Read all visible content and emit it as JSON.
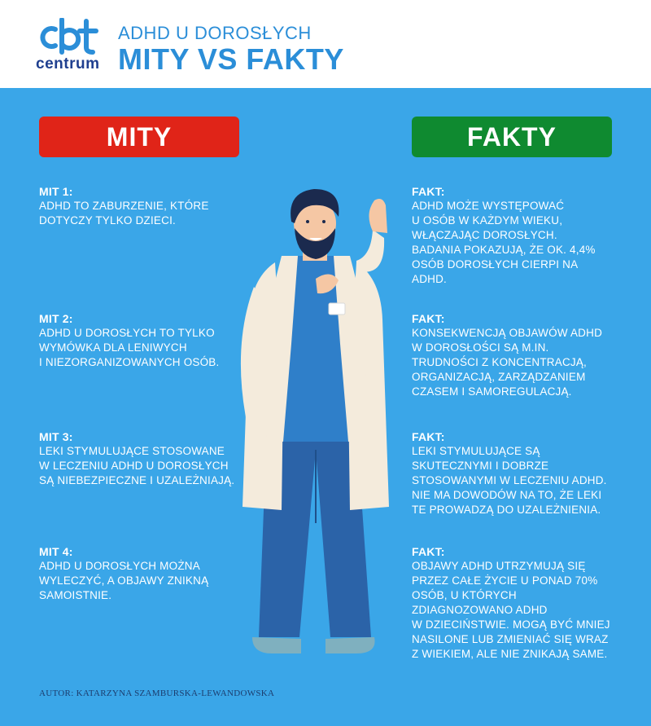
{
  "logo": {
    "mark": "cbt",
    "text": "centrum"
  },
  "header": {
    "subtitle": "ADHD U DOROSŁYCH",
    "title": "MITY VS FAKTY"
  },
  "columns": {
    "myths_label": "MITY",
    "facts_label": "FAKTY"
  },
  "myths": [
    {
      "head": "MIT 1:",
      "body": "ADHD TO ZABURZENIE, KTÓRE\nDOTYCZY TYLKO DZIECI."
    },
    {
      "head": "MIT 2:",
      "body": "ADHD U DOROSŁYCH TO TYLKO\nWYMÓWKA DLA LENIWYCH\nI NIEZORGANIZOWANYCH OSÓB."
    },
    {
      "head": "MIT 3:",
      "body": "LEKI STYMULUJĄCE STOSOWANE\nW LECZENIU ADHD U DOROSŁYCH\nSĄ NIEBEZPIECZNE I UZALEŻNIAJĄ."
    },
    {
      "head": "MIT 4:",
      "body": "ADHD U DOROSŁYCH MOŻNA\nWYLECZYĆ, A OBJAWY ZNIKNĄ\nSAMOISTNIE."
    }
  ],
  "facts": [
    {
      "head": "FAKT:",
      "body": "ADHD MOŻE WYSTĘPOWAĆ\nU OSÓB W KAŻDYM WIEKU,\nWŁĄCZAJĄC DOROSŁYCH.\nBADANIA POKAZUJĄ, ŻE OK. 4,4%\nOSÓB DOROSŁYCH CIERPI NA\nADHD."
    },
    {
      "head": "FAKT:",
      "body": "KONSEKWENCJĄ OBJAWÓW ADHD\nW DOROSŁOŚCI SĄ M.IN.\nTRUDNOŚCI Z KONCENTRACJĄ,\nORGANIZACJĄ, ZARZĄDZANIEM\nCZASEM I SAMOREGULACJĄ."
    },
    {
      "head": "FAKT:",
      "body": "LEKI STYMULUJĄCE SĄ\nSKUTECZNYMI I DOBRZE\nSTOSOWANYMI W LECZENIU ADHD.\nNIE MA DOWODÓW NA TO, ŻE LEKI\nTE PROWADZĄ DO UZALEŻNIENIA."
    },
    {
      "head": "FAKT:",
      "body": "OBJAWY ADHD UTRZYMUJĄ SIĘ\nPRZEZ CAŁE ŻYCIE U PONAD 70%\nOSÓB, U KTÓRYCH\nZDIAGNOZOWANO ADHD\nW DZIECIŃSTWIE. MOGĄ BYĆ MNIEJ\nNASILONE LUB ZMIENIAĆ SIĘ WRAZ\nZ WIEKIEM, ALE NIE ZNIKAJĄ SAME."
    }
  ],
  "author": "AUTOR: KATARZYNA SZAMBURSKA-LEWANDOWSKA",
  "colors": {
    "background": "#3aa6e8",
    "myths_accent": "#e02418",
    "facts_accent": "#0f8a30",
    "title_blue": "#2b8ed8",
    "logo_navy": "#1f3f8f"
  },
  "icons": {
    "illustration": "doctor-illustration"
  }
}
